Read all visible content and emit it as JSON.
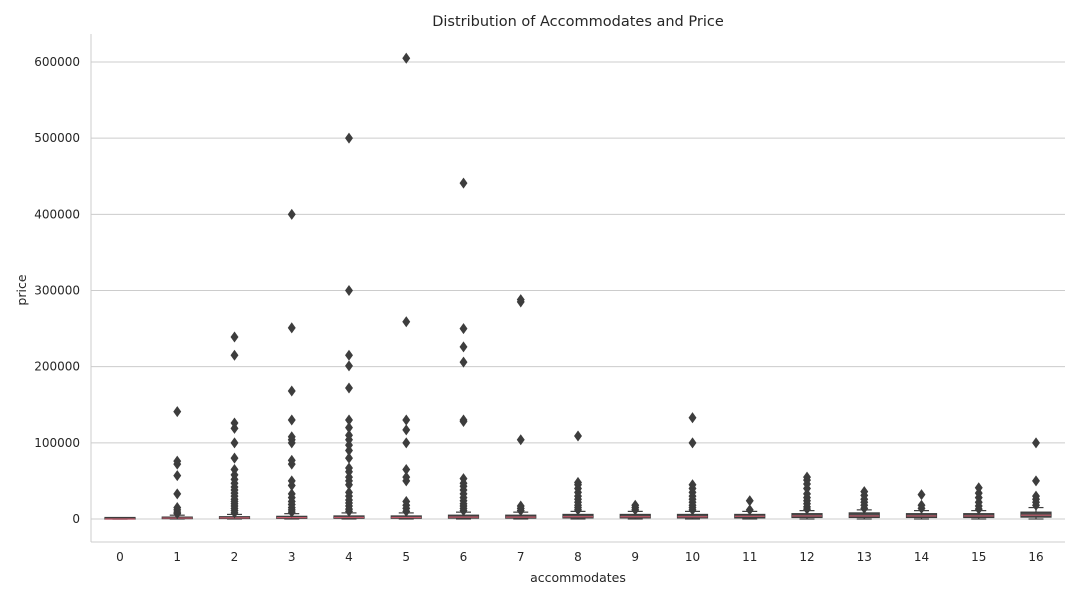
{
  "chart_data": {
    "type": "box",
    "title": "Distribution of Accommodates and Price",
    "xlabel": "accommodates",
    "ylabel": "price",
    "ylim": [
      -30000,
      635000
    ],
    "yticks": [
      0,
      100000,
      200000,
      300000,
      400000,
      500000,
      600000
    ],
    "grid": "horizontal",
    "categories": [
      "0",
      "1",
      "2",
      "3",
      "4",
      "5",
      "6",
      "7",
      "8",
      "9",
      "10",
      "11",
      "12",
      "13",
      "14",
      "15",
      "16"
    ],
    "boxes": [
      {
        "category": "0",
        "q1": 0,
        "median": 0,
        "q3": 0,
        "whisker_low": 0,
        "whisker_high": 0,
        "outliers": []
      },
      {
        "category": "1",
        "q1": 500,
        "median": 1200,
        "q3": 2500,
        "whisker_low": 0,
        "whisker_high": 5000,
        "outliers": [
          7000,
          9000,
          12000,
          15000,
          33000,
          57000,
          72000,
          76000,
          141000
        ]
      },
      {
        "category": "2",
        "q1": 700,
        "median": 1500,
        "q3": 3000,
        "whisker_low": 0,
        "whisker_high": 6000,
        "outliers": [
          8000,
          11000,
          14000,
          17000,
          20000,
          23000,
          26000,
          30000,
          34000,
          38000,
          42000,
          47000,
          52000,
          58000,
          65000,
          80000,
          100000,
          119000,
          126000,
          215000,
          239000
        ]
      },
      {
        "category": "3",
        "q1": 900,
        "median": 1800,
        "q3": 3500,
        "whisker_low": 0,
        "whisker_high": 7000,
        "outliers": [
          9000,
          12000,
          15000,
          19000,
          23000,
          28000,
          33000,
          44000,
          50000,
          72000,
          77000,
          100000,
          104000,
          108000,
          130000,
          168000,
          251000,
          400000
        ]
      },
      {
        "category": "4",
        "q1": 1000,
        "median": 2000,
        "q3": 4000,
        "whisker_low": 0,
        "whisker_high": 8000,
        "outliers": [
          10000,
          13000,
          17000,
          21000,
          25000,
          30000,
          35000,
          45000,
          50000,
          55000,
          62000,
          67000,
          80000,
          90000,
          97000,
          104000,
          110000,
          120000,
          130000,
          172000,
          201000,
          215000,
          300000,
          500000
        ]
      },
      {
        "category": "5",
        "q1": 1000,
        "median": 2000,
        "q3": 4000,
        "whisker_low": 0,
        "whisker_high": 8000,
        "outliers": [
          10000,
          14000,
          18000,
          23000,
          50000,
          55000,
          65000,
          100000,
          117000,
          130000,
          259000,
          605000
        ]
      },
      {
        "category": "6",
        "q1": 1200,
        "median": 2500,
        "q3": 5000,
        "whisker_low": 0,
        "whisker_high": 9000,
        "outliers": [
          11000,
          14000,
          17000,
          20000,
          24000,
          28000,
          33000,
          38000,
          43000,
          47000,
          53000,
          128000,
          130000,
          206000,
          226000,
          250000,
          441000
        ]
      },
      {
        "category": "7",
        "q1": 1200,
        "median": 2500,
        "q3": 5000,
        "whisker_low": 0,
        "whisker_high": 9000,
        "outliers": [
          11000,
          14000,
          17000,
          104000,
          285000,
          288000
        ]
      },
      {
        "category": "8",
        "q1": 1500,
        "median": 3000,
        "q3": 6000,
        "whisker_low": 0,
        "whisker_high": 10000,
        "outliers": [
          12000,
          15000,
          18000,
          22000,
          26000,
          30000,
          35000,
          40000,
          45000,
          48000,
          109000
        ]
      },
      {
        "category": "9",
        "q1": 1500,
        "median": 3000,
        "q3": 6000,
        "whisker_low": 0,
        "whisker_high": 10000,
        "outliers": [
          12000,
          15000,
          18000
        ]
      },
      {
        "category": "10",
        "q1": 1500,
        "median": 3000,
        "q3": 6000,
        "whisker_low": 0,
        "whisker_high": 10000,
        "outliers": [
          12000,
          15000,
          18000,
          22000,
          26000,
          30000,
          35000,
          40000,
          45000,
          100000,
          133000
        ]
      },
      {
        "category": "11",
        "q1": 1500,
        "median": 3500,
        "q3": 6000,
        "whisker_low": 0,
        "whisker_high": 10000,
        "outliers": [
          12000,
          24000
        ]
      },
      {
        "category": "12",
        "q1": 2000,
        "median": 4000,
        "q3": 7000,
        "whisker_low": 0,
        "whisker_high": 11000,
        "outliers": [
          13000,
          16000,
          20000,
          24000,
          28000,
          33000,
          40000,
          46000,
          51000,
          55000
        ]
      },
      {
        "category": "13",
        "q1": 2000,
        "median": 4000,
        "q3": 8000,
        "whisker_low": 0,
        "whisker_high": 12000,
        "outliers": [
          14000,
          18000,
          22000,
          26000,
          31000,
          36000
        ]
      },
      {
        "category": "14",
        "q1": 2000,
        "median": 4000,
        "q3": 7000,
        "whisker_low": 0,
        "whisker_high": 11000,
        "outliers": [
          14000,
          18000,
          32000
        ]
      },
      {
        "category": "15",
        "q1": 2000,
        "median": 4000,
        "q3": 7000,
        "whisker_low": 0,
        "whisker_high": 11000,
        "outliers": [
          13000,
          17000,
          22000,
          28000,
          34000,
          41000
        ]
      },
      {
        "category": "16",
        "q1": 2500,
        "median": 5000,
        "q3": 9000,
        "whisker_low": 0,
        "whisker_high": 15000,
        "outliers": [
          18000,
          22000,
          26000,
          30000,
          50000,
          100000
        ]
      }
    ],
    "colors": {
      "box": "#4a4a4a",
      "line": "#3d3d3d",
      "median": "#c45a6b",
      "grid": "#cccccc",
      "text": "#262626"
    }
  }
}
